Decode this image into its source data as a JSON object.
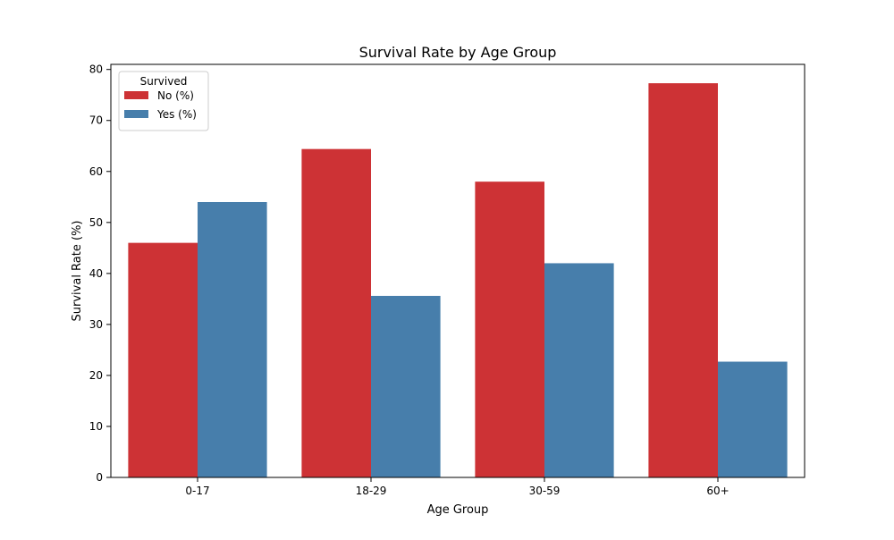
{
  "chart_data": {
    "type": "bar",
    "title": "Survival Rate by Age Group",
    "xlabel": "Age Group",
    "ylabel": "Survival Rate (%)",
    "categories": [
      "0-17",
      "18-29",
      "30-59",
      "60+"
    ],
    "series": [
      {
        "name": "No (%)",
        "color": "#cd3235",
        "values": [
          46.0,
          64.4,
          58.0,
          77.3
        ]
      },
      {
        "name": "Yes (%)",
        "color": "#477eab",
        "values": [
          54.0,
          35.6,
          42.0,
          22.7
        ]
      }
    ],
    "ylim": [
      0,
      81
    ],
    "yticks": [
      0,
      10,
      20,
      30,
      40,
      50,
      60,
      70,
      80
    ],
    "grid": false,
    "legend": {
      "title": "Survived",
      "position": "top-left"
    }
  }
}
